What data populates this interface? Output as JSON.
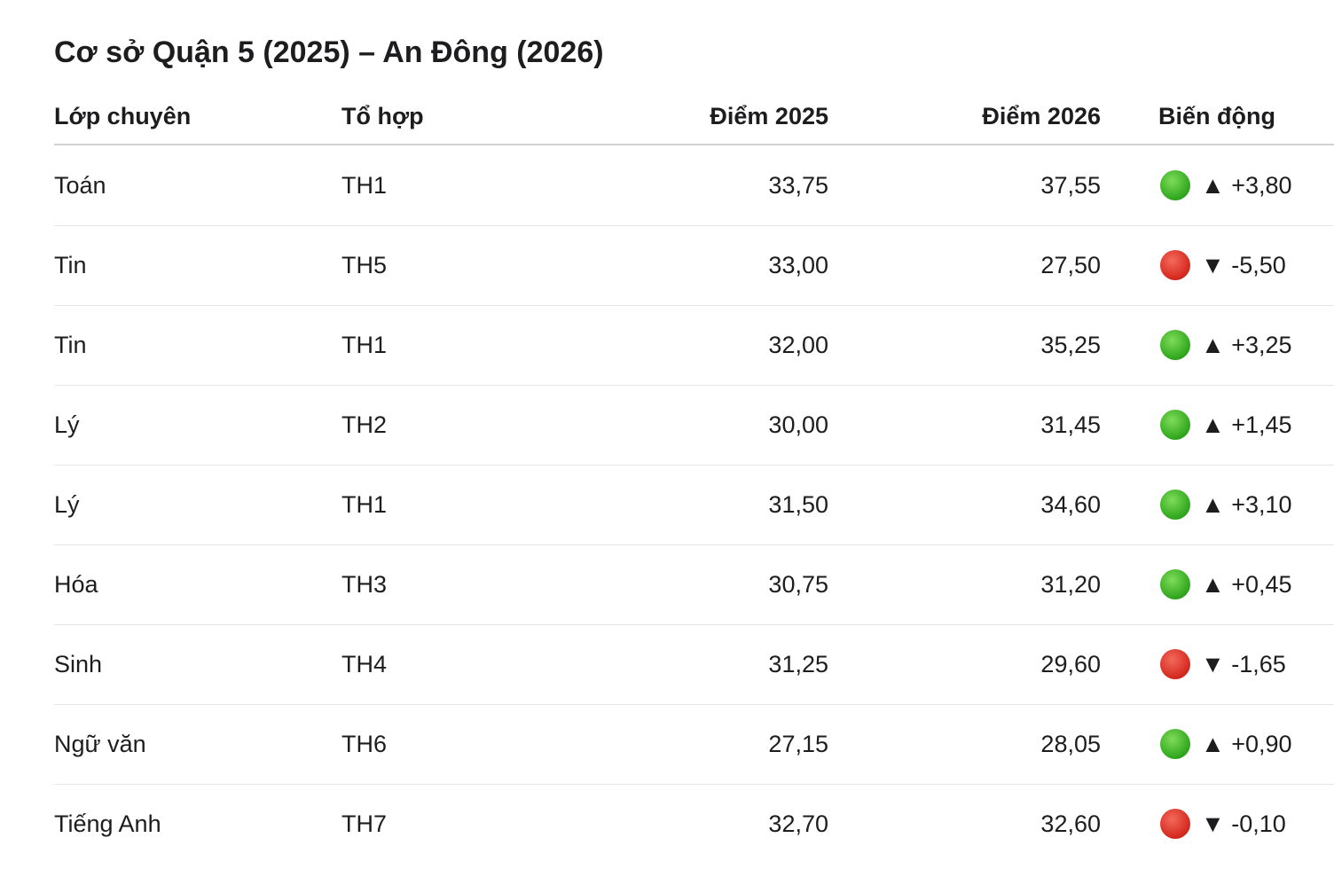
{
  "title": "Cơ sở Quận 5 (2025) – An Đông (2026)",
  "table": {
    "headers": [
      "Lớp chuyên",
      "Tổ hợp",
      "Điểm 2025",
      "Điểm 2026",
      "Biến động"
    ],
    "rows": [
      [
        "Toán",
        "TH1",
        "33,75",
        "37,55",
        "▲ +3,80"
      ],
      [
        "Tin",
        "TH5",
        "33,00",
        "27,50",
        "▼ -5,50"
      ],
      [
        "Tin",
        "TH1",
        "32,00",
        "35,25",
        "▲ +3,25"
      ],
      [
        "Lý",
        "TH2",
        "30,00",
        "31,45",
        "▲ +1,45"
      ],
      [
        "Lý",
        "TH1",
        "31,50",
        "34,60",
        "▲ +3,10"
      ],
      [
        "Hóa",
        "TH3",
        "30,75",
        "31,20",
        "▲ +0,45"
      ],
      [
        "Sinh",
        "TH4",
        "31,25",
        "29,60",
        "▼ -1,65"
      ],
      [
        "Ngữ văn",
        "TH6",
        "27,15",
        "28,05",
        "▲ +0,90"
      ],
      [
        "Tiếng Anh",
        "TH7",
        "32,70",
        "32,60",
        "▼ -0,10"
      ]
    ]
  }
}
